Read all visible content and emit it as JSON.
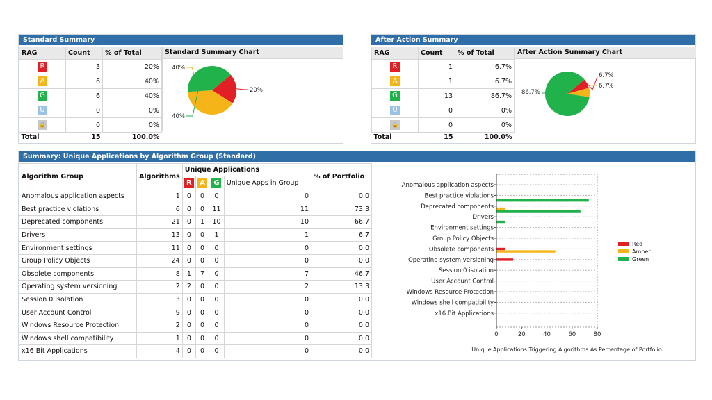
{
  "colors": {
    "red": "#e11f24",
    "amber": "#f5b518",
    "green": "#22b24c",
    "blue_u": "#9cc3e6",
    "grey_lock": "#c8c8c8",
    "header": "#2f6ea6"
  },
  "standard": {
    "title": "Standard Summary",
    "columns": [
      "RAG",
      "Count",
      "% of Total",
      "Standard Summary Chart"
    ],
    "rows": [
      {
        "rag": "R",
        "count": "3",
        "pct": "20%"
      },
      {
        "rag": "A",
        "count": "6",
        "pct": "40%"
      },
      {
        "rag": "G",
        "count": "6",
        "pct": "40%"
      },
      {
        "rag": "U",
        "count": "0",
        "pct": "0%"
      },
      {
        "rag": "lock",
        "count": "0",
        "pct": "0%"
      }
    ],
    "total": {
      "label": "Total",
      "count": "15",
      "pct": "100.0%"
    }
  },
  "after": {
    "title": "After Action Summary",
    "columns": [
      "RAG",
      "Count",
      "% of Total",
      "After Action Summary Chart"
    ],
    "rows": [
      {
        "rag": "R",
        "count": "1",
        "pct": "6.7%"
      },
      {
        "rag": "A",
        "count": "1",
        "pct": "6.7%"
      },
      {
        "rag": "G",
        "count": "13",
        "pct": "86.7%"
      },
      {
        "rag": "U",
        "count": "0",
        "pct": "0%"
      },
      {
        "rag": "lock",
        "count": "0",
        "pct": "0%"
      }
    ],
    "total": {
      "label": "Total",
      "count": "15",
      "pct": "100.0%"
    }
  },
  "groups": {
    "title": "Summary: Unique Applications by Algorithm Group (Standard)",
    "col_group": "Algorithm Group",
    "col_alg": "Algorithms",
    "col_unique": "Unique Applications",
    "col_unique_in_group": "Unique Apps in Group",
    "col_portfolio": "% of Portfolio",
    "rag_labels": [
      "R",
      "A",
      "G"
    ],
    "rows": [
      {
        "name": "Anomalous application aspects",
        "alg": "1",
        "r": "0",
        "a": "0",
        "g": "0",
        "uniq": "0",
        "pct": "0.0"
      },
      {
        "name": "Best practice violations",
        "alg": "6",
        "r": "0",
        "a": "0",
        "g": "11",
        "uniq": "11",
        "pct": "73.3"
      },
      {
        "name": "Deprecated components",
        "alg": "21",
        "r": "0",
        "a": "1",
        "g": "10",
        "uniq": "10",
        "pct": "66.7"
      },
      {
        "name": "Drivers",
        "alg": "13",
        "r": "0",
        "a": "0",
        "g": "1",
        "uniq": "1",
        "pct": "6.7"
      },
      {
        "name": "Environment settings",
        "alg": "11",
        "r": "0",
        "a": "0",
        "g": "0",
        "uniq": "0",
        "pct": "0.0"
      },
      {
        "name": "Group Policy Objects",
        "alg": "24",
        "r": "0",
        "a": "0",
        "g": "0",
        "uniq": "0",
        "pct": "0.0"
      },
      {
        "name": "Obsolete components",
        "alg": "8",
        "r": "1",
        "a": "7",
        "g": "0",
        "uniq": "7",
        "pct": "46.7"
      },
      {
        "name": "Operating system versioning",
        "alg": "2",
        "r": "2",
        "a": "0",
        "g": "0",
        "uniq": "2",
        "pct": "13.3"
      },
      {
        "name": "Session 0 isolation",
        "alg": "3",
        "r": "0",
        "a": "0",
        "g": "0",
        "uniq": "0",
        "pct": "0.0"
      },
      {
        "name": "User Account Control",
        "alg": "9",
        "r": "0",
        "a": "0",
        "g": "0",
        "uniq": "0",
        "pct": "0.0"
      },
      {
        "name": "Windows Resource Protection",
        "alg": "2",
        "r": "0",
        "a": "0",
        "g": "0",
        "uniq": "0",
        "pct": "0.0"
      },
      {
        "name": "Windows shell compatibility",
        "alg": "1",
        "r": "0",
        "a": "0",
        "g": "0",
        "uniq": "0",
        "pct": "0.0"
      },
      {
        "name": "x16 Bit Applications",
        "alg": "4",
        "r": "0",
        "a": "0",
        "g": "0",
        "uniq": "0",
        "pct": "0.0"
      }
    ]
  },
  "chart_data": [
    {
      "type": "pie",
      "title": "Standard Summary Chart",
      "labels": [
        "Red",
        "Amber",
        "Green"
      ],
      "values": [
        20,
        40,
        40
      ],
      "data_labels": [
        "20%",
        "40%",
        "40%"
      ]
    },
    {
      "type": "pie",
      "title": "After Action Summary Chart",
      "labels": [
        "Red",
        "Amber",
        "Green"
      ],
      "values": [
        6.7,
        6.7,
        86.7
      ],
      "data_labels": [
        "6.7%",
        "6.7%",
        "86.7%"
      ]
    },
    {
      "type": "bar",
      "orientation": "horizontal",
      "categories": [
        "Anomalous application aspects",
        "Best practice violations",
        "Deprecated components",
        "Drivers",
        "Environment settings",
        "Group Policy Objects",
        "Obsolete components",
        "Operating system versioning",
        "Session 0 isolation",
        "User Account Control",
        "Windows Resource Protection",
        "Windows shell compatibility",
        "x16 Bit Applications"
      ],
      "series": [
        {
          "name": "Red",
          "values": [
            0,
            0,
            0,
            0,
            0,
            0,
            6.7,
            13.3,
            0,
            0,
            0,
            0,
            0
          ]
        },
        {
          "name": "Amber",
          "values": [
            0,
            0,
            6.7,
            0,
            0,
            0,
            46.7,
            0,
            0,
            0,
            0,
            0,
            0
          ]
        },
        {
          "name": "Green",
          "values": [
            0,
            73.3,
            66.7,
            6.7,
            0,
            0,
            0,
            0,
            0,
            0,
            0,
            0,
            0
          ]
        }
      ],
      "xlabel": "Unique Applications Triggering Algorithms As Percentage of Portfolio",
      "xlim": [
        0,
        80
      ],
      "xticks": [
        "0",
        "20",
        "40",
        "60",
        "80"
      ],
      "legend": "right"
    }
  ]
}
